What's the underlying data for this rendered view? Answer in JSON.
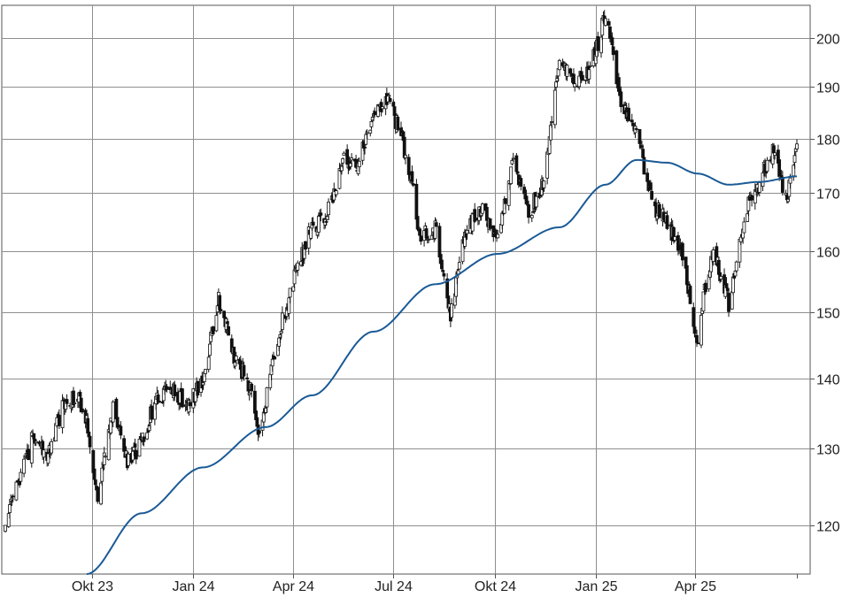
{
  "chart_data": {
    "type": "candlestick",
    "x_tick_labels": [
      "Okt 23",
      "Jan 24",
      "Apr 24",
      "Jul 24",
      "Okt 24",
      "Jan 25",
      "Apr 25"
    ],
    "y_tick_labels": [
      "120",
      "130",
      "140",
      "150",
      "160",
      "170",
      "180",
      "190",
      "200"
    ],
    "y_scale": "log",
    "ylim": [
      114,
      207
    ],
    "grid": true,
    "y_axis_side": "right",
    "candle_up_color": "#ffffff",
    "candle_down_color": "#111111",
    "moving_average_color": "#1a5a96",
    "close_anchors": {
      "x": [
        "2023-07-14",
        "2023-07-25",
        "2023-08-08",
        "2023-08-22",
        "2023-09-05",
        "2023-09-19",
        "2023-09-29",
        "2023-10-06",
        "2023-10-20",
        "2023-11-01",
        "2023-11-15",
        "2023-11-29",
        "2023-12-13",
        "2023-12-27",
        "2024-01-10",
        "2024-01-24",
        "2024-02-07",
        "2024-02-21",
        "2024-02-29",
        "2024-03-07",
        "2024-03-21",
        "2024-03-27",
        "2024-04-04",
        "2024-04-18",
        "2024-05-02",
        "2024-05-16",
        "2024-05-30",
        "2024-06-13",
        "2024-06-27",
        "2024-07-11",
        "2024-07-18",
        "2024-07-25",
        "2024-08-08",
        "2024-08-22",
        "2024-09-06",
        "2024-09-20",
        "2024-10-04",
        "2024-10-18",
        "2024-11-01",
        "2024-11-15",
        "2024-11-29",
        "2024-12-13",
        "2024-12-27",
        "2025-01-10",
        "2025-01-24",
        "2025-02-07",
        "2025-02-21",
        "2025-03-07",
        "2025-03-21",
        "2025-04-04",
        "2025-04-08",
        "2025-04-18",
        "2025-05-02",
        "2025-05-16",
        "2025-05-30",
        "2025-06-13",
        "2025-06-24",
        "2025-07-03"
      ],
      "y": [
        119.5,
        125.5,
        131.5,
        129.5,
        136.5,
        137.5,
        131.5,
        123.0,
        135.5,
        128.5,
        130.5,
        137.5,
        138.0,
        136.5,
        139.5,
        152.0,
        143.5,
        139.0,
        131.5,
        136.5,
        148.5,
        151.5,
        157.0,
        164.0,
        166.5,
        176.0,
        175.5,
        184.0,
        187.5,
        178.0,
        171.0,
        163.0,
        163.5,
        150.0,
        164.5,
        166.5,
        163.0,
        176.0,
        166.5,
        172.0,
        196.5,
        191.5,
        194.0,
        204.5,
        187.0,
        181.5,
        168.5,
        164.5,
        159.5,
        145.0,
        152.0,
        160.0,
        151.5,
        166.0,
        172.0,
        178.5,
        168.0,
        180.0
      ]
    },
    "moving_average": {
      "x": [
        "2023-09-26",
        "2023-11-15",
        "2024-01-10",
        "2024-03-07",
        "2024-04-18",
        "2024-06-13",
        "2024-08-08",
        "2024-10-04",
        "2024-11-29",
        "2025-01-10",
        "2025-02-07",
        "2025-03-07",
        "2025-04-04",
        "2025-05-02",
        "2025-05-30",
        "2025-07-03"
      ],
      "y": [
        114.0,
        121.5,
        127.5,
        133.0,
        137.5,
        147.0,
        154.5,
        159.5,
        164.0,
        171.5,
        176.0,
        175.5,
        173.5,
        171.5,
        172.0,
        173.0
      ]
    }
  }
}
